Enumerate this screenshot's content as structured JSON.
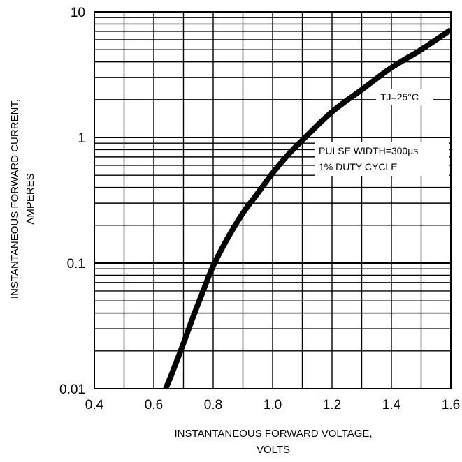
{
  "chart_data": {
    "type": "line",
    "x_scale": "linear",
    "y_scale": "log",
    "xlim": [
      0.4,
      1.6
    ],
    "ylim": [
      0.01,
      10
    ],
    "grid": true,
    "x_ticks": [
      "0.4",
      "0.6",
      "0.8",
      "1.0",
      "1.2",
      "1.4",
      "1.6"
    ],
    "y_ticks": [
      "0.01",
      "0.1",
      "1",
      "10"
    ],
    "xlabel_lines": [
      "INSTANTANEOUS FORWARD VOLTAGE,",
      "VOLTS"
    ],
    "ylabel_lines": [
      "INSTANTANEOUS FORWARD CURRENT,",
      "AMPERES"
    ],
    "annotations": [
      "TJ=25°C",
      "PULSE WIDTH=300µs",
      "1% DUTY CYCLE"
    ],
    "series": [
      {
        "x": [
          0.64,
          0.66,
          0.7,
          0.73,
          0.76,
          0.8,
          0.85,
          0.9,
          0.95,
          1.0,
          1.05,
          1.1,
          1.2,
          1.3,
          1.4,
          1.5,
          1.6
        ],
        "y": [
          0.01,
          0.013,
          0.023,
          0.036,
          0.055,
          0.095,
          0.16,
          0.25,
          0.36,
          0.52,
          0.72,
          0.95,
          1.6,
          2.4,
          3.6,
          5.0,
          7.2
        ],
        "color": "#000000"
      }
    ]
  }
}
